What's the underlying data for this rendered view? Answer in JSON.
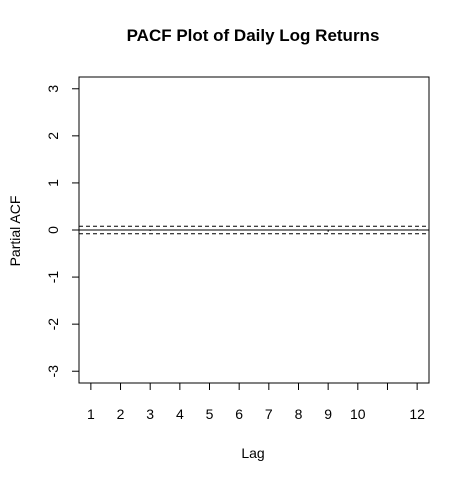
{
  "chart_data": {
    "type": "bar",
    "title": "PACF Plot of Daily Log Returns",
    "xlabel": "Lag",
    "ylabel": "Partial ACF",
    "x": [
      1,
      2,
      3,
      4,
      5,
      6,
      7,
      8,
      9,
      10,
      11,
      12
    ],
    "values": [
      0.01,
      0.01,
      -0.02,
      0.01,
      -0.01,
      -0.01,
      0.01,
      0.01,
      -0.04,
      -0.01,
      0.0,
      0.02
    ],
    "xticks": [
      "1",
      "2",
      "3",
      "4",
      "5",
      "6",
      "7",
      "8",
      "9",
      "10",
      "",
      "12"
    ],
    "yticks": [
      "-3",
      "-2",
      "-1",
      "0",
      "1",
      "2",
      "3"
    ],
    "xlim": [
      0.6,
      12.4
    ],
    "ylim": [
      -3.25,
      3.25
    ],
    "confidence_bounds": [
      -0.08,
      0.08
    ],
    "zero_line": true,
    "grid": false,
    "legend": "none",
    "colors": {
      "bars": "#000000",
      "confidence_lines": "#000000",
      "zero_line": "#000000"
    }
  }
}
